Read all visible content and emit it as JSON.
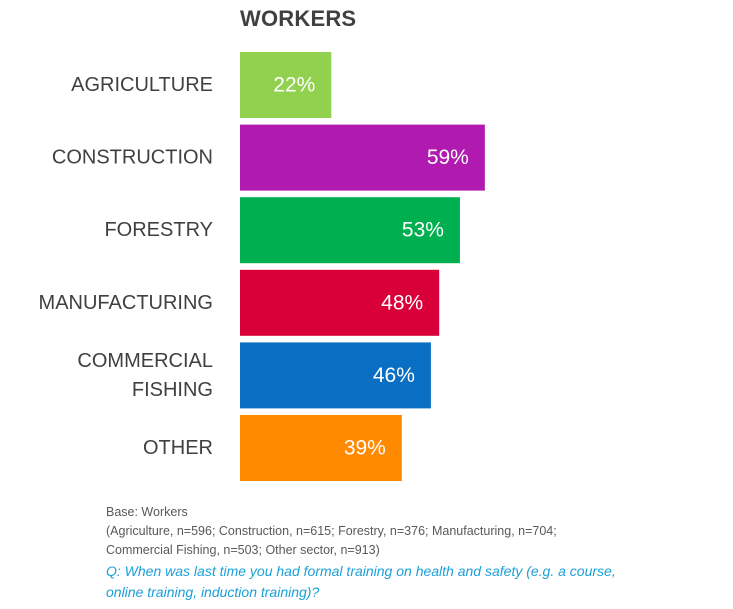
{
  "chart_data": {
    "type": "bar",
    "orientation": "horizontal",
    "title": "WORKERS",
    "categories": [
      "AGRICULTURE",
      "CONSTRUCTION",
      "FORESTRY",
      "MANUFACTURING",
      "COMMERCIAL FISHING",
      "OTHER"
    ],
    "category_lines": [
      [
        "AGRICULTURE"
      ],
      [
        "CONSTRUCTION"
      ],
      [
        "FORESTRY"
      ],
      [
        "MANUFACTURING"
      ],
      [
        "COMMERCIAL",
        "FISHING"
      ],
      [
        "OTHER"
      ]
    ],
    "values": [
      22,
      59,
      53,
      48,
      46,
      39
    ],
    "value_labels": [
      "22%",
      "59%",
      "53%",
      "48%",
      "46%",
      "39%"
    ],
    "colors": [
      "#92d050",
      "#b01ab0",
      "#00b050",
      "#d9003a",
      "#0a6fc2",
      "#ff8a00"
    ],
    "xlim": [
      0,
      100
    ],
    "grid": false,
    "legend": "none"
  },
  "footnote": {
    "base_label": "Base: Workers",
    "base_detail_line1": "(Agriculture, n=596; Construction, n=615; Forestry, n=376; Manufacturing, n=704;",
    "base_detail_line2": "Commercial Fishing, n=503; Other sector, n=913)",
    "question_line1": "Q: When was last time you had formal training on health and safety (e.g. a course,",
    "question_line2": "online training, induction training)?"
  }
}
